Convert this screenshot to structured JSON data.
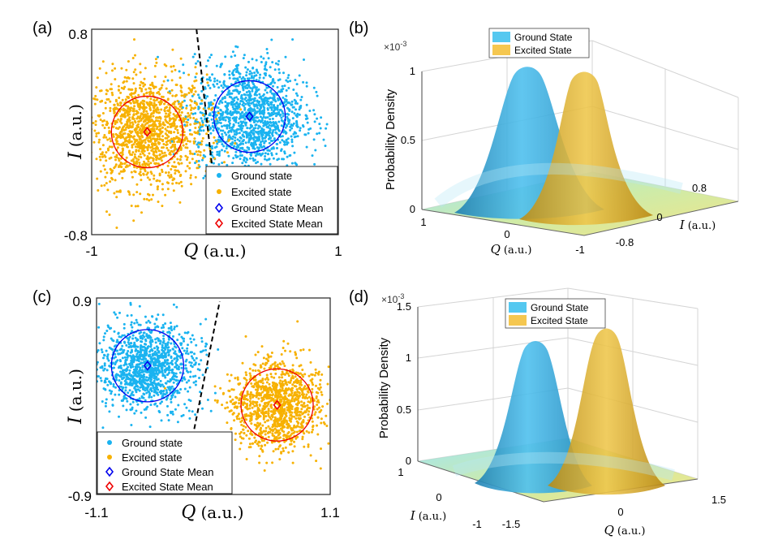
{
  "chart_data": [
    {
      "panel": "(a)",
      "type": "scatter",
      "xlabel_var": "Q",
      "xlabel_unit": "(a.u.)",
      "ylabel_var": "I",
      "ylabel_unit": "(a.u.)",
      "xlim": [
        -1,
        1
      ],
      "ylim": [
        -0.8,
        0.8
      ],
      "x_tick_labels": [
        "-1",
        "1"
      ],
      "y_tick_labels": [
        "0.8",
        "-0.8"
      ],
      "legend_position": "bottom-right",
      "series": [
        {
          "name": "Ground state",
          "color": "#1ab3f0",
          "center": [
            0.28,
            0.12
          ],
          "spread": [
            0.22,
            0.22
          ],
          "count": 1400
        },
        {
          "name": "Excited state",
          "color": "#f7b100",
          "center": [
            -0.55,
            0.0
          ],
          "spread": [
            0.24,
            0.22
          ],
          "count": 1400
        },
        {
          "name": "Ground State Mean",
          "color": "#0000ee",
          "marker": "diamond",
          "point": [
            0.28,
            0.12
          ]
        },
        {
          "name": "Excited State Mean",
          "color": "#ee0000",
          "marker": "diamond",
          "point": [
            -0.55,
            0.0
          ]
        }
      ],
      "circles": [
        {
          "center": [
            0.28,
            0.12
          ],
          "radius": 0.29,
          "color": "#0000ee"
        },
        {
          "center": [
            -0.55,
            0.0
          ],
          "radius": 0.29,
          "color": "#ee0000"
        }
      ],
      "threshold": [
        [
          -0.15,
          0.8
        ],
        [
          -0.02,
          -0.3
        ]
      ]
    },
    {
      "panel": "(b)",
      "type": "surface",
      "zlabel": "Probability Density",
      "multiplier": "×10^-3",
      "xlabel_var": "Q",
      "xlabel_unit": "(a.u.)",
      "ylabel_var": "I",
      "ylabel_unit": "(a.u.)",
      "z_tick_labels": [
        "0",
        "0.5",
        "1"
      ],
      "q_tick_labels": [
        "1",
        "0",
        "-1"
      ],
      "i_tick_labels": [
        "-0.8",
        "0",
        "0.8"
      ],
      "zlim": [
        0,
        1
      ],
      "legend_position": "top",
      "series": [
        {
          "name": "Ground State",
          "color": "#55c8f0",
          "peak": 1.0
        },
        {
          "name": "Excited State",
          "color": "#f5c750",
          "peak": 0.93
        }
      ]
    },
    {
      "panel": "(c)",
      "type": "scatter",
      "xlabel_var": "Q",
      "xlabel_unit": "(a.u.)",
      "ylabel_var": "I",
      "ylabel_unit": "(a.u.)",
      "xlim": [
        -1.1,
        1.1
      ],
      "ylim": [
        -0.9,
        0.9
      ],
      "x_tick_labels": [
        "-1.1",
        "1.1"
      ],
      "y_tick_labels": [
        "0.9",
        "-0.9"
      ],
      "legend_position": "bottom-left",
      "series": [
        {
          "name": "Ground state",
          "color": "#1ab3f0",
          "center": [
            -0.62,
            0.28
          ],
          "spread": [
            0.22,
            0.2
          ],
          "count": 1200
        },
        {
          "name": "Excited state",
          "color": "#f7b100",
          "center": [
            0.6,
            -0.08
          ],
          "spread": [
            0.22,
            0.2
          ],
          "count": 1200
        },
        {
          "name": "Ground State Mean",
          "color": "#0000ee",
          "marker": "diamond",
          "point": [
            -0.62,
            0.28
          ]
        },
        {
          "name": "Excited State Mean",
          "color": "#ee0000",
          "marker": "diamond",
          "point": [
            0.6,
            -0.08
          ]
        }
      ],
      "circles": [
        {
          "center": [
            -0.62,
            0.28
          ],
          "radius": 0.34,
          "color": "#0000ee"
        },
        {
          "center": [
            0.6,
            -0.08
          ],
          "radius": 0.34,
          "color": "#ee0000"
        }
      ],
      "threshold": [
        [
          -0.18,
          -0.3
        ],
        [
          0.06,
          0.87
        ]
      ]
    },
    {
      "panel": "(d)",
      "type": "surface",
      "zlabel": "Probability Density",
      "multiplier": "×10^-3",
      "xlabel_var": "Q",
      "xlabel_unit": "(a.u.)",
      "ylabel_var": "I",
      "ylabel_unit": "(a.u.)",
      "z_tick_labels": [
        "0",
        "0.5",
        "1",
        "1.5"
      ],
      "q_tick_labels": [
        "-1.5",
        "0",
        "1.5"
      ],
      "i_tick_labels": [
        "1",
        "0",
        "-1"
      ],
      "zlim": [
        0,
        1.5
      ],
      "legend_position": "top",
      "series": [
        {
          "name": "Ground State",
          "color": "#55c8f0",
          "peak": 1.15
        },
        {
          "name": "Excited State",
          "color": "#f5c750",
          "peak": 1.15
        }
      ]
    }
  ]
}
